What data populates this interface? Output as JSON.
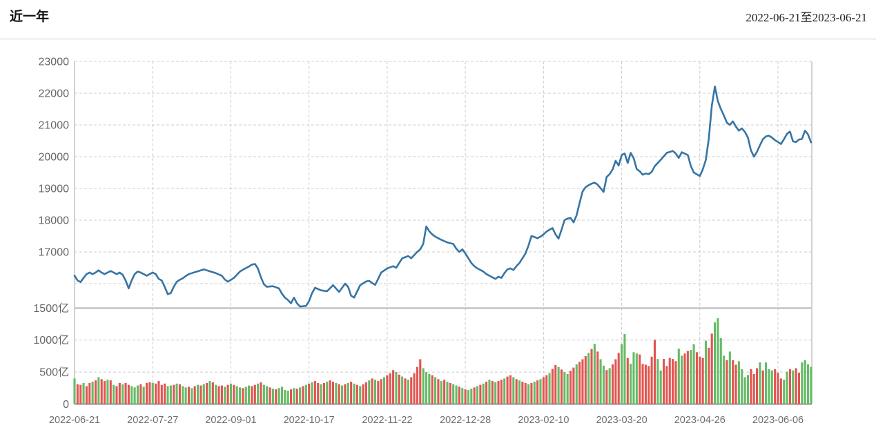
{
  "header": {
    "title": "近一年",
    "date_range": "2022-06-21至2023-06-21"
  },
  "chart_data": {
    "type": "line+bar",
    "title": "近一年",
    "subtitle": "2022-06-21至2023-06-21",
    "panels": [
      "price-line",
      "volume-bars"
    ],
    "grid": "dashed",
    "legend": "none",
    "x_tick_labels": [
      "2022-06-21",
      "2022-07-27",
      "2022-09-01",
      "2022-10-17",
      "2022-11-22",
      "2022-12-28",
      "2023-02-10",
      "2023-03-20",
      "2023-04-26",
      "2023-06-06"
    ],
    "x_tick_day_indices": [
      0,
      26,
      52,
      78,
      104,
      130,
      156,
      182,
      208,
      234
    ],
    "num_days": 246,
    "price_axis": {
      "tick_labels": [
        "23000",
        "22000",
        "21000",
        "20000",
        "19000",
        "18000",
        "17000"
      ],
      "tick_values": [
        23000,
        22000,
        21000,
        20000,
        19000,
        18000,
        17000
      ],
      "grid_values": [
        23000,
        22000,
        21000,
        20000,
        19000,
        18000,
        17000,
        16000
      ],
      "range": [
        15230,
        23000
      ]
    },
    "volume_axis": {
      "unit": "亿",
      "tick_labels": [
        "1500亿",
        "1000亿",
        "500亿",
        "0"
      ],
      "tick_values": [
        1500,
        1000,
        500,
        0
      ],
      "grid_values": [
        1000,
        500
      ],
      "range": [
        0,
        1500
      ]
    },
    "price_anchors": [
      [
        0,
        16250
      ],
      [
        1,
        16100
      ],
      [
        2,
        16050
      ],
      [
        3,
        16180
      ],
      [
        4,
        16300
      ],
      [
        5,
        16350
      ],
      [
        6,
        16300
      ],
      [
        7,
        16350
      ],
      [
        8,
        16420
      ],
      [
        9,
        16350
      ],
      [
        10,
        16300
      ],
      [
        11,
        16350
      ],
      [
        12,
        16400
      ],
      [
        13,
        16350
      ],
      [
        14,
        16300
      ],
      [
        15,
        16350
      ],
      [
        16,
        16280
      ],
      [
        17,
        16100
      ],
      [
        18,
        15850
      ],
      [
        19,
        16100
      ],
      [
        20,
        16300
      ],
      [
        21,
        16380
      ],
      [
        22,
        16350
      ],
      [
        23,
        16300
      ],
      [
        24,
        16250
      ],
      [
        25,
        16300
      ],
      [
        26,
        16350
      ],
      [
        27,
        16300
      ],
      [
        28,
        16150
      ],
      [
        29,
        16100
      ],
      [
        30,
        15900
      ],
      [
        31,
        15670
      ],
      [
        32,
        15700
      ],
      [
        33,
        15900
      ],
      [
        34,
        16060
      ],
      [
        35,
        16120
      ],
      [
        36,
        16170
      ],
      [
        37,
        16240
      ],
      [
        38,
        16300
      ],
      [
        40,
        16360
      ],
      [
        42,
        16420
      ],
      [
        43,
        16450
      ],
      [
        45,
        16390
      ],
      [
        47,
        16330
      ],
      [
        49,
        16250
      ],
      [
        50,
        16130
      ],
      [
        51,
        16060
      ],
      [
        53,
        16180
      ],
      [
        54,
        16280
      ],
      [
        55,
        16380
      ],
      [
        56,
        16440
      ],
      [
        58,
        16540
      ],
      [
        59,
        16600
      ],
      [
        60,
        16620
      ],
      [
        61,
        16480
      ],
      [
        62,
        16200
      ],
      [
        63,
        15980
      ],
      [
        64,
        15900
      ],
      [
        66,
        15920
      ],
      [
        68,
        15850
      ],
      [
        69,
        15680
      ],
      [
        70,
        15560
      ],
      [
        71,
        15480
      ],
      [
        72,
        15380
      ],
      [
        73,
        15560
      ],
      [
        74,
        15380
      ],
      [
        75,
        15280
      ],
      [
        77,
        15300
      ],
      [
        78,
        15450
      ],
      [
        79,
        15700
      ],
      [
        80,
        15870
      ],
      [
        82,
        15790
      ],
      [
        84,
        15760
      ],
      [
        86,
        15950
      ],
      [
        88,
        15740
      ],
      [
        90,
        16000
      ],
      [
        91,
        15900
      ],
      [
        92,
        15620
      ],
      [
        93,
        15560
      ],
      [
        94,
        15750
      ],
      [
        95,
        15950
      ],
      [
        97,
        16070
      ],
      [
        98,
        16090
      ],
      [
        99,
        16020
      ],
      [
        100,
        15960
      ],
      [
        101,
        16150
      ],
      [
        102,
        16350
      ],
      [
        104,
        16480
      ],
      [
        106,
        16550
      ],
      [
        107,
        16500
      ],
      [
        109,
        16800
      ],
      [
        111,
        16870
      ],
      [
        112,
        16800
      ],
      [
        114,
        17000
      ],
      [
        115,
        17080
      ],
      [
        116,
        17250
      ],
      [
        117,
        17800
      ],
      [
        118,
        17650
      ],
      [
        119,
        17550
      ],
      [
        120,
        17480
      ],
      [
        121,
        17430
      ],
      [
        122,
        17380
      ],
      [
        124,
        17300
      ],
      [
        126,
        17250
      ],
      [
        127,
        17100
      ],
      [
        128,
        17000
      ],
      [
        129,
        17080
      ],
      [
        130,
        16950
      ],
      [
        131,
        16800
      ],
      [
        132,
        16650
      ],
      [
        133,
        16550
      ],
      [
        134,
        16480
      ],
      [
        136,
        16380
      ],
      [
        137,
        16300
      ],
      [
        139,
        16200
      ],
      [
        140,
        16150
      ],
      [
        141,
        16220
      ],
      [
        142,
        16180
      ],
      [
        143,
        16330
      ],
      [
        144,
        16450
      ],
      [
        145,
        16480
      ],
      [
        146,
        16430
      ],
      [
        147,
        16550
      ],
      [
        148,
        16650
      ],
      [
        149,
        16800
      ],
      [
        150,
        16950
      ],
      [
        151,
        17200
      ],
      [
        152,
        17500
      ],
      [
        153,
        17470
      ],
      [
        154,
        17430
      ],
      [
        155,
        17480
      ],
      [
        156,
        17550
      ],
      [
        157,
        17640
      ],
      [
        158,
        17700
      ],
      [
        159,
        17750
      ],
      [
        160,
        17550
      ],
      [
        161,
        17420
      ],
      [
        162,
        17700
      ],
      [
        163,
        18000
      ],
      [
        164,
        18050
      ],
      [
        165,
        18070
      ],
      [
        166,
        17930
      ],
      [
        167,
        18150
      ],
      [
        168,
        18540
      ],
      [
        169,
        18900
      ],
      [
        170,
        19040
      ],
      [
        171,
        19100
      ],
      [
        172,
        19150
      ],
      [
        173,
        19180
      ],
      [
        174,
        19120
      ],
      [
        176,
        18890
      ],
      [
        177,
        19360
      ],
      [
        178,
        19450
      ],
      [
        179,
        19600
      ],
      [
        180,
        19870
      ],
      [
        181,
        19720
      ],
      [
        182,
        20050
      ],
      [
        183,
        20100
      ],
      [
        184,
        19800
      ],
      [
        185,
        20120
      ],
      [
        186,
        19950
      ],
      [
        187,
        19610
      ],
      [
        188,
        19540
      ],
      [
        189,
        19430
      ],
      [
        190,
        19470
      ],
      [
        191,
        19450
      ],
      [
        192,
        19520
      ],
      [
        193,
        19700
      ],
      [
        194,
        19800
      ],
      [
        195,
        19900
      ],
      [
        197,
        20120
      ],
      [
        199,
        20180
      ],
      [
        200,
        20100
      ],
      [
        201,
        19960
      ],
      [
        202,
        20140
      ],
      [
        204,
        20050
      ],
      [
        205,
        19710
      ],
      [
        206,
        19500
      ],
      [
        208,
        19390
      ],
      [
        209,
        19600
      ],
      [
        210,
        19900
      ],
      [
        211,
        20570
      ],
      [
        212,
        21610
      ],
      [
        213,
        22210
      ],
      [
        214,
        21750
      ],
      [
        215,
        21500
      ],
      [
        216,
        21300
      ],
      [
        217,
        21070
      ],
      [
        218,
        21000
      ],
      [
        219,
        21110
      ],
      [
        220,
        20950
      ],
      [
        221,
        20820
      ],
      [
        222,
        20890
      ],
      [
        223,
        20780
      ],
      [
        224,
        20600
      ],
      [
        225,
        20200
      ],
      [
        226,
        20000
      ],
      [
        227,
        20150
      ],
      [
        228,
        20360
      ],
      [
        229,
        20550
      ],
      [
        230,
        20640
      ],
      [
        231,
        20660
      ],
      [
        232,
        20600
      ],
      [
        233,
        20520
      ],
      [
        234,
        20460
      ],
      [
        235,
        20400
      ],
      [
        236,
        20550
      ],
      [
        237,
        20720
      ],
      [
        238,
        20790
      ],
      [
        239,
        20480
      ],
      [
        240,
        20460
      ],
      [
        241,
        20540
      ],
      [
        242,
        20560
      ],
      [
        243,
        20820
      ],
      [
        244,
        20700
      ],
      [
        245,
        20450
      ]
    ],
    "volume_values": [
      400,
      310,
      300,
      330,
      280,
      330,
      350,
      370,
      420,
      390,
      360,
      380,
      370,
      300,
      280,
      330,
      310,
      330,
      300,
      280,
      260,
      290,
      310,
      270,
      330,
      340,
      330,
      320,
      360,
      300,
      320,
      280,
      290,
      300,
      320,
      310,
      280,
      260,
      270,
      250,
      280,
      300,
      290,
      310,
      330,
      360,
      340,
      300,
      280,
      290,
      270,
      300,
      320,
      300,
      280,
      260,
      250,
      270,
      290,
      280,
      300,
      320,
      340,
      300,
      280,
      260,
      240,
      230,
      250,
      270,
      220,
      210,
      230,
      250,
      240,
      260,
      280,
      300,
      320,
      340,
      360,
      330,
      310,
      330,
      350,
      370,
      350,
      330,
      310,
      290,
      310,
      330,
      350,
      320,
      300,
      280,
      310,
      340,
      370,
      400,
      380,
      360,
      390,
      420,
      450,
      480,
      530,
      500,
      460,
      430,
      400,
      380,
      420,
      480,
      580,
      700,
      560,
      500,
      470,
      450,
      420,
      390,
      360,
      380,
      350,
      330,
      310,
      290,
      270,
      250,
      230,
      220,
      240,
      260,
      280,
      300,
      320,
      350,
      380,
      360,
      340,
      360,
      380,
      400,
      430,
      450,
      420,
      390,
      370,
      350,
      330,
      310,
      330,
      350,
      370,
      390,
      420,
      450,
      480,
      550,
      610,
      580,
      540,
      500,
      470,
      520,
      570,
      620,
      660,
      700,
      750,
      800,
      860,
      940,
      820,
      700,
      600,
      530,
      560,
      620,
      700,
      800,
      935,
      1095,
      720,
      630,
      810,
      790,
      775,
      625,
      615,
      595,
      740,
      1005,
      705,
      525,
      705,
      595,
      720,
      705,
      670,
      865,
      755,
      790,
      830,
      845,
      935,
      810,
      740,
      720,
      990,
      880,
      1100,
      1275,
      1340,
      1030,
      755,
      685,
      820,
      685,
      615,
      670,
      545,
      420,
      455,
      545,
      470,
      560,
      650,
      525,
      650,
      545,
      525,
      545,
      490,
      400,
      380,
      505,
      545,
      525,
      560,
      490,
      650,
      685,
      620,
      580
    ],
    "volume_directions": "grrgrrgrgrrgrgrrgrrgggrgrrgrrrrggrgrggrgrgrgrgrgrrgrgrggrggrrgrggrgrggggrgrgrgrgrrgrgrrgrgrgrgrgrrgrgrrgrrrgrgrgrrrrgggrgrgrgrggrgrggrgrgrgrgrrgrrgrgrrgrgrgrrgrrgrggrrgrrrgrgrggrgrrrggrgggrrrrrrggrrrrrggrrggrrrgrrggggrgrrggggrrrgrgggrrrggrgrrggg",
    "colors": {
      "line": "#3674a3",
      "volume_up": "#e15551",
      "volume_down": "#65bb65",
      "grid": "#cccccc",
      "border": "#c3c3c3",
      "separator": "#c3c3c3",
      "bottom_axis": "#8f8f8f",
      "y_label": "#666666",
      "x_label": "#6e6e6e"
    }
  }
}
